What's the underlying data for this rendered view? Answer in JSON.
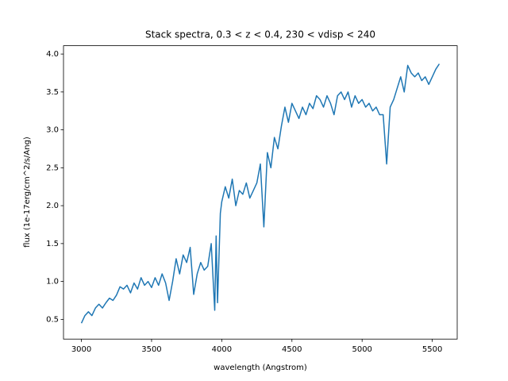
{
  "chart_data": {
    "type": "line",
    "title": "Stack spectra, 0.3 < z < 0.4, 230 < vdisp < 240",
    "x_label": "wavelength (Angstrom)",
    "y_label": "flux (1e-17erg/cm^2/s/Ang)",
    "x": [
      3000,
      3025,
      3050,
      3075,
      3100,
      3125,
      3150,
      3175,
      3200,
      3225,
      3250,
      3275,
      3300,
      3325,
      3350,
      3375,
      3400,
      3425,
      3450,
      3475,
      3500,
      3525,
      3550,
      3575,
      3600,
      3625,
      3650,
      3675,
      3700,
      3725,
      3750,
      3775,
      3800,
      3825,
      3850,
      3875,
      3900,
      3925,
      3950,
      3960,
      3970,
      3990,
      4000,
      4025,
      4050,
      4075,
      4100,
      4125,
      4150,
      4175,
      4200,
      4225,
      4250,
      4275,
      4300,
      4325,
      4350,
      4375,
      4400,
      4425,
      4450,
      4475,
      4500,
      4525,
      4550,
      4575,
      4600,
      4625,
      4650,
      4675,
      4700,
      4725,
      4750,
      4775,
      4800,
      4825,
      4850,
      4875,
      4900,
      4925,
      4950,
      4975,
      5000,
      5025,
      5050,
      5075,
      5100,
      5125,
      5150,
      5175,
      5200,
      5225,
      5250,
      5275,
      5300,
      5325,
      5350,
      5375,
      5400,
      5425,
      5450,
      5475,
      5500,
      5525,
      5550
    ],
    "series": [
      {
        "name": "flux",
        "color": "#1f77b4",
        "values": [
          0.45,
          0.55,
          0.6,
          0.55,
          0.65,
          0.7,
          0.65,
          0.72,
          0.78,
          0.75,
          0.82,
          0.93,
          0.9,
          0.95,
          0.85,
          0.98,
          0.9,
          1.05,
          0.95,
          1.0,
          0.92,
          1.05,
          0.95,
          1.1,
          0.98,
          0.75,
          1.0,
          1.3,
          1.1,
          1.35,
          1.25,
          1.45,
          0.83,
          1.1,
          1.25,
          1.15,
          1.2,
          1.5,
          0.62,
          1.6,
          0.72,
          1.9,
          2.05,
          2.25,
          2.1,
          2.35,
          2.0,
          2.2,
          2.15,
          2.3,
          2.1,
          2.2,
          2.3,
          2.55,
          1.72,
          2.7,
          2.5,
          2.9,
          2.75,
          3.05,
          3.3,
          3.1,
          3.35,
          3.25,
          3.15,
          3.3,
          3.2,
          3.35,
          3.28,
          3.45,
          3.4,
          3.3,
          3.45,
          3.35,
          3.2,
          3.45,
          3.5,
          3.4,
          3.5,
          3.3,
          3.45,
          3.35,
          3.4,
          3.3,
          3.35,
          3.25,
          3.3,
          3.2,
          3.2,
          2.55,
          3.3,
          3.4,
          3.55,
          3.7,
          3.5,
          3.85,
          3.75,
          3.7,
          3.75,
          3.65,
          3.7,
          3.6,
          3.7,
          3.8,
          3.87
        ]
      }
    ],
    "xlim": [
      2872.5,
      5677.5
    ],
    "ylim": [
      0.24,
      4.11
    ],
    "xticks": [
      3000,
      3500,
      4000,
      4500,
      5000,
      5500
    ],
    "yticks": [
      0.5,
      {
        "value": 1,
        "label": "1.0"
      },
      1.5,
      {
        "value": 2,
        "label": "2.0"
      },
      2.5,
      {
        "value": 3,
        "label": "3.0"
      },
      3.5,
      {
        "value": 4,
        "label": "4.0"
      }
    ]
  }
}
